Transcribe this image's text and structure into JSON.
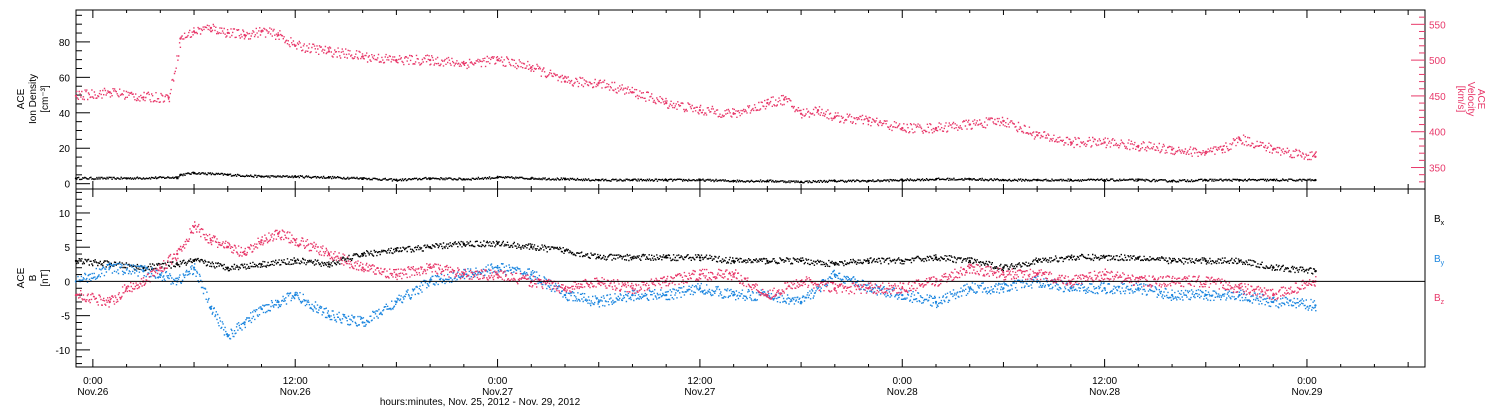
{
  "colors": {
    "black": "#000000",
    "pink": "#e8386a",
    "blue": "#1c86df"
  },
  "xaxis": {
    "title": "hours:minutes, Nov. 25, 2012 - Nov. 29, 2012",
    "ticks": [
      {
        "x": 0,
        "time": "0:00",
        "date": "Nov.26"
      },
      {
        "x": 12,
        "time": "12:00",
        "date": "Nov.26"
      },
      {
        "x": 24,
        "time": "0:00",
        "date": "Nov.27"
      },
      {
        "x": 36,
        "time": "12:00",
        "date": "Nov.27"
      },
      {
        "x": 48,
        "time": "0:00",
        "date": "Nov.28"
      },
      {
        "x": 60,
        "time": "12:00",
        "date": "Nov.28"
      },
      {
        "x": 72,
        "time": "0:00",
        "date": "Nov.29"
      }
    ],
    "range_hours": [
      -1,
      79
    ]
  },
  "chart_data": [
    {
      "type": "scatter",
      "panel": "top",
      "ylabel_left": [
        "ACE",
        "Ion Density",
        "[cm⁻³]"
      ],
      "ylabel_right": [
        "ACE",
        "Velocity",
        "[km/s]"
      ],
      "ylim_left": [
        -3,
        98
      ],
      "yticks_left": [
        0,
        20,
        40,
        60,
        80
      ],
      "ylim_right": [
        320,
        570
      ],
      "yticks_right": [
        350,
        400,
        450,
        500,
        550
      ],
      "series": [
        {
          "axis": "left",
          "color": "black",
          "x": [
            -1,
            2,
            5,
            5.2,
            6,
            8,
            10,
            12,
            14,
            16,
            18,
            20,
            22,
            24,
            26,
            28,
            30,
            32,
            34,
            36,
            38,
            40,
            42,
            44,
            46,
            48,
            50,
            52,
            54,
            56,
            58,
            60,
            62,
            64,
            66,
            68,
            70,
            72.5
          ],
          "y": [
            3,
            3,
            3.5,
            5,
            6,
            5,
            4,
            4,
            3.5,
            3,
            2,
            3,
            2.5,
            3.5,
            3,
            2.5,
            2,
            2,
            2,
            2,
            1.5,
            1.5,
            1,
            1.5,
            1.5,
            2,
            2.5,
            2.5,
            2,
            2,
            2,
            2,
            2,
            1.5,
            2,
            2,
            2,
            2
          ]
        },
        {
          "axis": "right",
          "color": "pink",
          "x": [
            -1,
            1,
            3,
            4.5,
            5.2,
            6,
            7,
            8,
            9,
            10,
            11,
            12,
            14,
            16,
            18,
            20,
            22,
            24,
            26,
            28,
            30,
            32,
            34,
            36,
            38,
            40,
            41,
            42,
            43,
            44,
            46,
            48,
            50,
            52,
            54,
            56,
            58,
            60,
            62,
            64,
            66,
            67,
            68,
            70,
            72.5
          ],
          "y": [
            450,
            455,
            448,
            448,
            530,
            540,
            545,
            538,
            535,
            540,
            535,
            520,
            512,
            505,
            500,
            500,
            495,
            500,
            490,
            470,
            468,
            455,
            440,
            430,
            425,
            440,
            445,
            425,
            430,
            420,
            415,
            405,
            405,
            410,
            415,
            395,
            385,
            385,
            380,
            375,
            370,
            375,
            390,
            375,
            365
          ]
        }
      ]
    },
    {
      "type": "scatter",
      "panel": "bottom",
      "ylabel_left": [
        "ACE",
        "B",
        "[nT]"
      ],
      "ylim": [
        -12.5,
        13.5
      ],
      "yticks": [
        -10,
        -5,
        0,
        5,
        10
      ],
      "zero_line": true,
      "legend": [
        "Bx",
        "By",
        "Bz"
      ],
      "series": [
        {
          "name": "Bx",
          "color": "black",
          "x": [
            -1,
            1,
            3,
            5,
            6,
            8,
            10,
            12,
            14,
            16,
            18,
            20,
            22,
            24,
            26,
            28,
            30,
            32,
            34,
            36,
            38,
            40,
            42,
            44,
            46,
            48,
            50,
            52,
            54,
            56,
            58,
            60,
            62,
            64,
            66,
            68,
            70,
            72.5
          ],
          "y": [
            3,
            2.5,
            2,
            2.5,
            3,
            2,
            2.5,
            3,
            2.5,
            4,
            4.5,
            5,
            5.5,
            5.5,
            5,
            4.5,
            3.5,
            3.5,
            3.5,
            3.5,
            3,
            3,
            3,
            2.5,
            3,
            3,
            3.5,
            3,
            2,
            3,
            3.5,
            3.5,
            3.5,
            3,
            3,
            3,
            2,
            1.5
          ]
        },
        {
          "name": "By",
          "color": "blue",
          "x": [
            -1,
            1,
            3,
            4,
            5,
            6,
            7,
            8,
            9,
            10,
            11,
            12,
            14,
            16,
            18,
            20,
            22,
            24,
            26,
            28,
            30,
            32,
            34,
            36,
            38,
            40,
            42,
            44,
            46,
            48,
            50,
            52,
            54,
            56,
            58,
            60,
            62,
            64,
            66,
            68,
            70,
            72.5
          ],
          "y": [
            0,
            2,
            1.5,
            1,
            0,
            2,
            -4,
            -8,
            -6,
            -4,
            -3,
            -2,
            -5,
            -6,
            -3,
            0,
            1,
            2,
            1,
            -2,
            -3,
            -2,
            -2,
            -1,
            -2,
            -2,
            -3,
            1,
            -1,
            -2,
            -3,
            -1,
            -1,
            0,
            -1,
            -1,
            -1,
            -2,
            -2,
            -2,
            -3,
            -3.5
          ]
        },
        {
          "name": "Bz",
          "color": "pink",
          "x": [
            -1,
            1,
            2,
            3,
            4,
            5,
            6,
            7,
            8,
            9,
            10,
            11,
            12,
            14,
            16,
            18,
            20,
            22,
            24,
            26,
            28,
            30,
            32,
            34,
            36,
            38,
            40,
            42,
            44,
            46,
            48,
            50,
            52,
            54,
            56,
            58,
            60,
            62,
            64,
            66,
            68,
            70,
            72.5
          ],
          "y": [
            -2,
            -3,
            -1,
            0,
            2,
            4,
            8,
            6,
            5,
            4,
            6,
            7,
            6,
            4,
            2,
            1,
            2,
            1,
            1,
            0,
            -1,
            0,
            -1,
            0,
            1,
            1,
            -2,
            0,
            -1,
            -1,
            -1,
            0,
            2,
            1,
            1,
            0,
            1,
            0,
            0,
            0,
            -1,
            -2,
            0
          ]
        }
      ]
    }
  ]
}
